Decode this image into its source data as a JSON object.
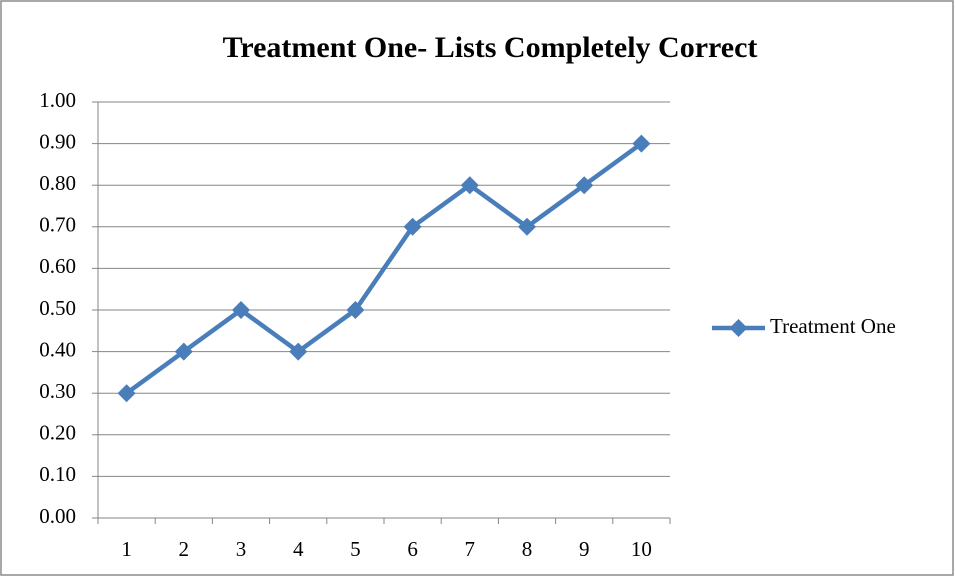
{
  "chart_data": {
    "type": "line",
    "title": "Treatment One- Lists Completely Correct",
    "categories": [
      "1",
      "2",
      "3",
      "4",
      "5",
      "6",
      "7",
      "8",
      "9",
      "10"
    ],
    "series": [
      {
        "name": "Treatment One",
        "color": "#4a7ebb",
        "values": [
          0.3,
          0.4,
          0.5,
          0.4,
          0.5,
          0.7,
          0.8,
          0.7,
          0.8,
          0.9
        ]
      }
    ],
    "ylim": [
      0,
      1
    ],
    "yticks": [
      {
        "value": 0,
        "label": "0.00"
      },
      {
        "value": 0.1,
        "label": "0.10"
      },
      {
        "value": 0.2,
        "label": "0.20"
      },
      {
        "value": 0.3,
        "label": "0.30"
      },
      {
        "value": 0.4,
        "label": "0.40"
      },
      {
        "value": 0.5,
        "label": "0.50"
      },
      {
        "value": 0.6,
        "label": "0.60"
      },
      {
        "value": 0.7,
        "label": "0.70"
      },
      {
        "value": 0.8,
        "label": "0.80"
      },
      {
        "value": 0.9,
        "label": "0.90"
      },
      {
        "value": 1,
        "label": "1.00"
      }
    ],
    "grid": true,
    "legend": "right"
  }
}
